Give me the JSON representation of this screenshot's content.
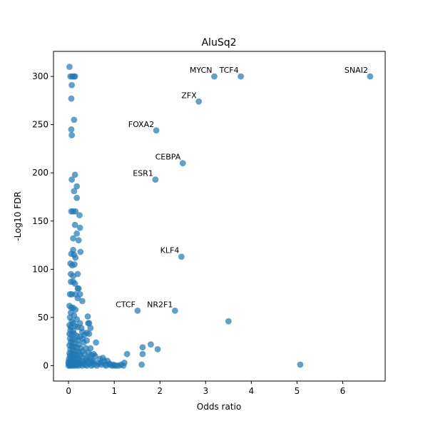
{
  "chart_data": {
    "type": "scatter",
    "title": "AluSq2",
    "xlabel": "Odds ratio",
    "ylabel": "-Log10 FDR",
    "xlim": [
      -0.33,
      6.93
    ],
    "ylim": [
      -16,
      326
    ],
    "xticks": [
      0,
      1,
      2,
      3,
      4,
      5,
      6
    ],
    "yticks": [
      0,
      50,
      100,
      150,
      200,
      250,
      300
    ],
    "grid": false,
    "point_color": "#1f77b4",
    "point_opacity": 0.7,
    "annotations": [
      {
        "label": "MYCN",
        "x": 3.19,
        "y": 300
      },
      {
        "label": "TCF4",
        "x": 3.77,
        "y": 300
      },
      {
        "label": "SNAI2",
        "x": 6.6,
        "y": 300
      },
      {
        "label": "ZFX",
        "x": 2.85,
        "y": 274
      },
      {
        "label": "FOXA2",
        "x": 1.92,
        "y": 244
      },
      {
        "label": "CEBPA",
        "x": 2.5,
        "y": 210
      },
      {
        "label": "ESR1",
        "x": 1.9,
        "y": 193
      },
      {
        "label": "KLF4",
        "x": 2.47,
        "y": 113
      },
      {
        "label": "CTCF",
        "x": 1.51,
        "y": 57
      },
      {
        "label": "NR2F1",
        "x": 2.33,
        "y": 57
      }
    ],
    "points": [
      [
        3.19,
        300
      ],
      [
        3.77,
        300
      ],
      [
        6.6,
        300
      ],
      [
        2.85,
        274
      ],
      [
        1.92,
        244
      ],
      [
        2.5,
        210
      ],
      [
        1.9,
        193
      ],
      [
        2.47,
        113
      ],
      [
        1.51,
        57
      ],
      [
        2.33,
        57
      ],
      [
        3.5,
        46
      ],
      [
        5.07,
        1
      ],
      [
        1.6,
        1
      ],
      [
        1.62,
        12
      ],
      [
        1.62,
        19
      ],
      [
        1.8,
        22
      ],
      [
        1.95,
        17
      ],
      [
        1.28,
        12
      ],
      [
        1.22,
        3
      ],
      [
        1.15,
        1
      ],
      [
        1.1,
        0
      ],
      [
        1.05,
        0
      ],
      [
        1.0,
        0
      ],
      [
        0.95,
        0
      ],
      [
        0.98,
        1
      ],
      [
        0.9,
        2
      ],
      [
        0.85,
        5
      ],
      [
        0.8,
        1
      ],
      [
        0.75,
        8
      ],
      [
        0.7,
        3
      ],
      [
        0.65,
        2
      ],
      [
        0.6,
        24
      ],
      [
        0.58,
        10
      ],
      [
        0.55,
        5
      ],
      [
        0.02,
        310
      ],
      [
        0.04,
        300
      ],
      [
        0.08,
        300
      ],
      [
        0.12,
        300
      ],
      [
        0.14,
        300
      ],
      [
        0.07,
        291
      ],
      [
        0.06,
        277
      ],
      [
        0.12,
        255
      ],
      [
        0.06,
        245
      ],
      [
        0.07,
        239
      ],
      [
        0.14,
        198
      ],
      [
        0.07,
        193
      ],
      [
        0.18,
        186
      ],
      [
        0.12,
        181
      ],
      [
        0.18,
        174
      ],
      [
        0.06,
        160
      ],
      [
        0.1,
        160
      ],
      [
        0.15,
        160
      ],
      [
        0.24,
        156
      ],
      [
        0.14,
        146
      ],
      [
        0.25,
        143
      ],
      [
        0.18,
        137
      ],
      [
        0.1,
        132
      ],
      [
        0.22,
        130
      ],
      [
        0.1,
        120
      ],
      [
        0.06,
        116
      ],
      [
        0.26,
        118
      ],
      [
        0.12,
        115
      ],
      [
        0.15,
        112
      ],
      [
        0.04,
        106
      ],
      [
        0.08,
        104
      ],
      [
        0.13,
        105
      ],
      [
        0.05,
        95
      ],
      [
        0.2,
        95
      ],
      [
        0.1,
        93
      ],
      [
        0.05,
        87
      ],
      [
        0.1,
        87
      ],
      [
        0.14,
        85
      ],
      [
        0.2,
        80
      ],
      [
        0.22,
        80
      ],
      [
        0.03,
        74
      ],
      [
        0.07,
        74
      ],
      [
        0.15,
        74
      ],
      [
        0.25,
        74
      ],
      [
        0.2,
        70
      ],
      [
        0.3,
        67
      ],
      [
        0.02,
        62
      ],
      [
        0.06,
        60
      ],
      [
        0.1,
        60
      ],
      [
        0.15,
        58
      ],
      [
        0.05,
        55
      ],
      [
        0.12,
        52
      ],
      [
        0.42,
        51
      ],
      [
        0.03,
        50
      ],
      [
        0.18,
        48
      ],
      [
        0.07,
        46
      ],
      [
        0.1,
        44
      ],
      [
        0.25,
        44
      ],
      [
        0.43,
        44
      ],
      [
        0.45,
        44
      ],
      [
        0.02,
        42
      ],
      [
        0.05,
        40
      ],
      [
        0.15,
        41
      ],
      [
        0.2,
        40
      ],
      [
        0.28,
        39
      ],
      [
        0.48,
        39
      ],
      [
        0.04,
        37
      ],
      [
        0.1,
        36
      ],
      [
        0.3,
        35
      ],
      [
        0.4,
        34
      ],
      [
        0.02,
        33
      ],
      [
        0.06,
        32
      ],
      [
        0.12,
        33
      ],
      [
        0.18,
        31
      ],
      [
        0.25,
        30
      ],
      [
        0.35,
        32
      ],
      [
        0.45,
        33
      ],
      [
        0.03,
        28
      ],
      [
        0.08,
        27
      ],
      [
        0.14,
        27
      ],
      [
        0.2,
        26
      ],
      [
        0.3,
        28
      ],
      [
        0.4,
        26
      ],
      [
        0.05,
        24
      ],
      [
        0.1,
        23
      ],
      [
        0.22,
        22
      ],
      [
        0.33,
        24
      ],
      [
        0.02,
        21
      ],
      [
        0.07,
        20
      ],
      [
        0.13,
        20
      ],
      [
        0.18,
        19
      ],
      [
        0.27,
        18
      ],
      [
        0.38,
        18
      ],
      [
        0.48,
        18
      ],
      [
        0.04,
        17
      ],
      [
        0.09,
        16
      ],
      [
        0.16,
        15
      ],
      [
        0.22,
        14
      ],
      [
        0.3,
        15
      ],
      [
        0.43,
        14
      ],
      [
        0.02,
        13
      ],
      [
        0.06,
        12
      ],
      [
        0.11,
        12
      ],
      [
        0.17,
        11
      ],
      [
        0.25,
        11
      ],
      [
        0.35,
        12
      ],
      [
        0.5,
        11
      ],
      [
        0.55,
        12
      ],
      [
        0.03,
        10
      ],
      [
        0.08,
        9
      ],
      [
        0.13,
        9
      ],
      [
        0.19,
        8
      ],
      [
        0.28,
        9
      ],
      [
        0.4,
        8
      ],
      [
        0.47,
        9
      ],
      [
        0.01,
        7
      ],
      [
        0.05,
        7
      ],
      [
        0.1,
        6
      ],
      [
        0.15,
        6
      ],
      [
        0.21,
        6
      ],
      [
        0.3,
        5
      ],
      [
        0.38,
        6
      ],
      [
        0.5,
        5
      ],
      [
        0.0,
        4
      ],
      [
        0.04,
        4
      ],
      [
        0.08,
        3
      ],
      [
        0.12,
        4
      ],
      [
        0.18,
        3
      ],
      [
        0.24,
        3
      ],
      [
        0.33,
        3
      ],
      [
        0.42,
        4
      ],
      [
        0.52,
        3
      ],
      [
        0.0,
        2
      ],
      [
        0.02,
        1
      ],
      [
        0.06,
        2
      ],
      [
        0.1,
        1
      ],
      [
        0.14,
        2
      ],
      [
        0.2,
        1
      ],
      [
        0.28,
        2
      ],
      [
        0.36,
        1
      ],
      [
        0.45,
        2
      ],
      [
        0.55,
        1
      ],
      [
        0.0,
        0
      ],
      [
        0.03,
        0
      ],
      [
        0.07,
        0
      ],
      [
        0.11,
        0
      ],
      [
        0.16,
        0
      ],
      [
        0.22,
        0
      ],
      [
        0.3,
        0
      ],
      [
        0.4,
        0
      ],
      [
        0.5,
        0
      ],
      [
        0.62,
        0
      ],
      [
        0.72,
        1
      ],
      [
        0.82,
        0
      ],
      [
        0.9,
        1
      ],
      [
        1.2,
        0
      ],
      [
        0.68,
        7
      ],
      [
        0.78,
        5
      ]
    ]
  }
}
